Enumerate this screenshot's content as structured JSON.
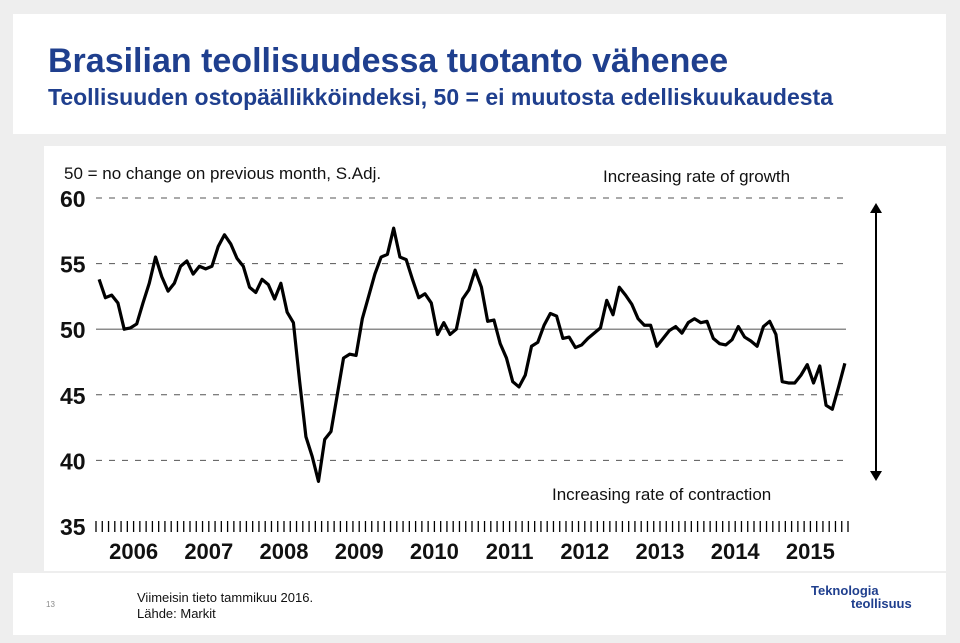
{
  "slide": {
    "title": "Brasilian teollisuudessa tuotanto vähenee",
    "subtitle": "Teollisuuden ostopäällikköindeksi, 50 = ei muutosta edelliskuukaudesta",
    "page_number": "13",
    "source_line1": "Viimeisin tieto tammikuu 2016.",
    "source_line2": "Lähde: Markit",
    "logo_line1": "Teknologia",
    "logo_line2": "teollisuus"
  },
  "chart_data": {
    "type": "line",
    "title": "50 = no change on previous month, S.Adj.",
    "annotation_top": "Increasing rate of growth",
    "annotation_bottom": "Increasing rate of contraction",
    "ylim": [
      35,
      60
    ],
    "yticks": [
      35,
      40,
      45,
      50,
      55,
      60
    ],
    "reference_line": 50,
    "x_start": "2006-01",
    "x_labels": [
      "2006",
      "2007",
      "2008",
      "2009",
      "2010",
      "2011",
      "2012",
      "2013",
      "2014",
      "2015"
    ],
    "grid": "dashed horizontal",
    "series": [
      {
        "values": [
          53.8,
          52.4,
          52.6,
          52.0,
          50.0,
          50.1,
          50.4,
          52.0,
          53.5,
          55.5,
          54.0,
          52.9,
          53.5,
          54.8,
          55.2,
          54.2,
          54.8,
          54.6,
          54.8,
          56.3,
          57.2,
          56.5,
          55.4,
          54.8,
          53.2,
          52.8,
          53.8,
          53.4,
          52.3,
          53.5,
          51.3,
          50.5,
          46.0,
          41.8,
          40.3,
          38.4,
          41.6,
          42.2,
          45.0,
          47.8,
          48.1,
          48.0,
          50.8,
          52.5,
          54.2,
          55.5,
          55.7,
          57.7,
          55.5,
          55.3,
          53.8,
          52.4,
          52.7,
          52.0,
          49.6,
          50.5,
          49.6,
          50.0,
          52.3,
          53.0,
          54.5,
          53.2,
          50.6,
          50.7,
          48.9,
          47.8,
          46.0,
          45.6,
          46.5,
          48.7,
          49.0,
          50.3,
          51.2,
          51.0,
          49.3,
          49.4,
          48.6,
          48.8,
          49.3,
          49.7,
          50.1,
          52.2,
          51.1,
          53.2,
          52.6,
          51.9,
          50.8,
          50.3,
          50.3,
          48.7,
          49.3,
          49.9,
          50.2,
          49.7,
          50.5,
          50.8,
          50.5,
          50.6,
          49.3,
          48.9,
          48.8,
          49.2,
          50.2,
          49.4,
          49.1,
          48.7,
          50.2,
          50.6,
          49.6,
          46.0,
          45.9,
          45.9,
          46.5,
          47.3,
          45.9,
          47.2,
          44.2,
          43.9,
          45.6,
          47.4
        ]
      }
    ]
  }
}
